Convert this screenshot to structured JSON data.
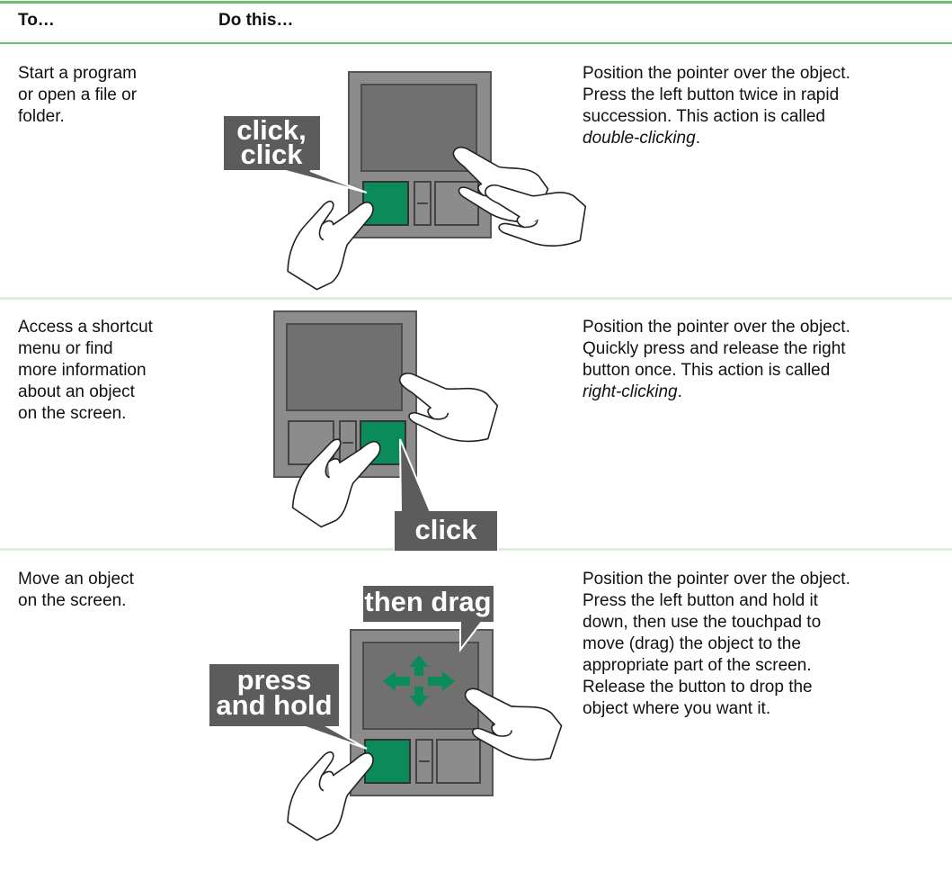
{
  "table": {
    "header": [
      "To…",
      "Do this…"
    ],
    "rows": [
      {
        "action": [
          "Start a program",
          "or open a file or",
          "folder."
        ],
        "callouts": [
          [
            "click,",
            "click"
          ]
        ],
        "instructions": [
          "Position the pointer over the object.",
          "Press the left button twice in rapid",
          "succession. This action is called"
        ],
        "emphasis": "double-clicking",
        "end": "."
      },
      {
        "action": [
          "Access a shortcut",
          "menu or find",
          "more information",
          "about an object",
          "on the screen."
        ],
        "callouts": [
          [
            "click"
          ]
        ],
        "instructions": [
          "Position the pointer over the object.",
          "Quickly press and release the right",
          "button once. This action is called"
        ],
        "emphasis": "right-clicking",
        "end": "."
      },
      {
        "action": [
          "Move an object",
          "on the screen."
        ],
        "callouts": [
          [
            "then drag"
          ],
          [
            "press",
            "and hold"
          ]
        ],
        "instructions": [
          "Position the pointer over the object.",
          "Press the left button and hold it",
          "down, then use the touchpad to",
          "move (drag) the object to the",
          "appropriate part of the screen.",
          "Release the button to drop the",
          "object where you want it."
        ]
      }
    ]
  }
}
